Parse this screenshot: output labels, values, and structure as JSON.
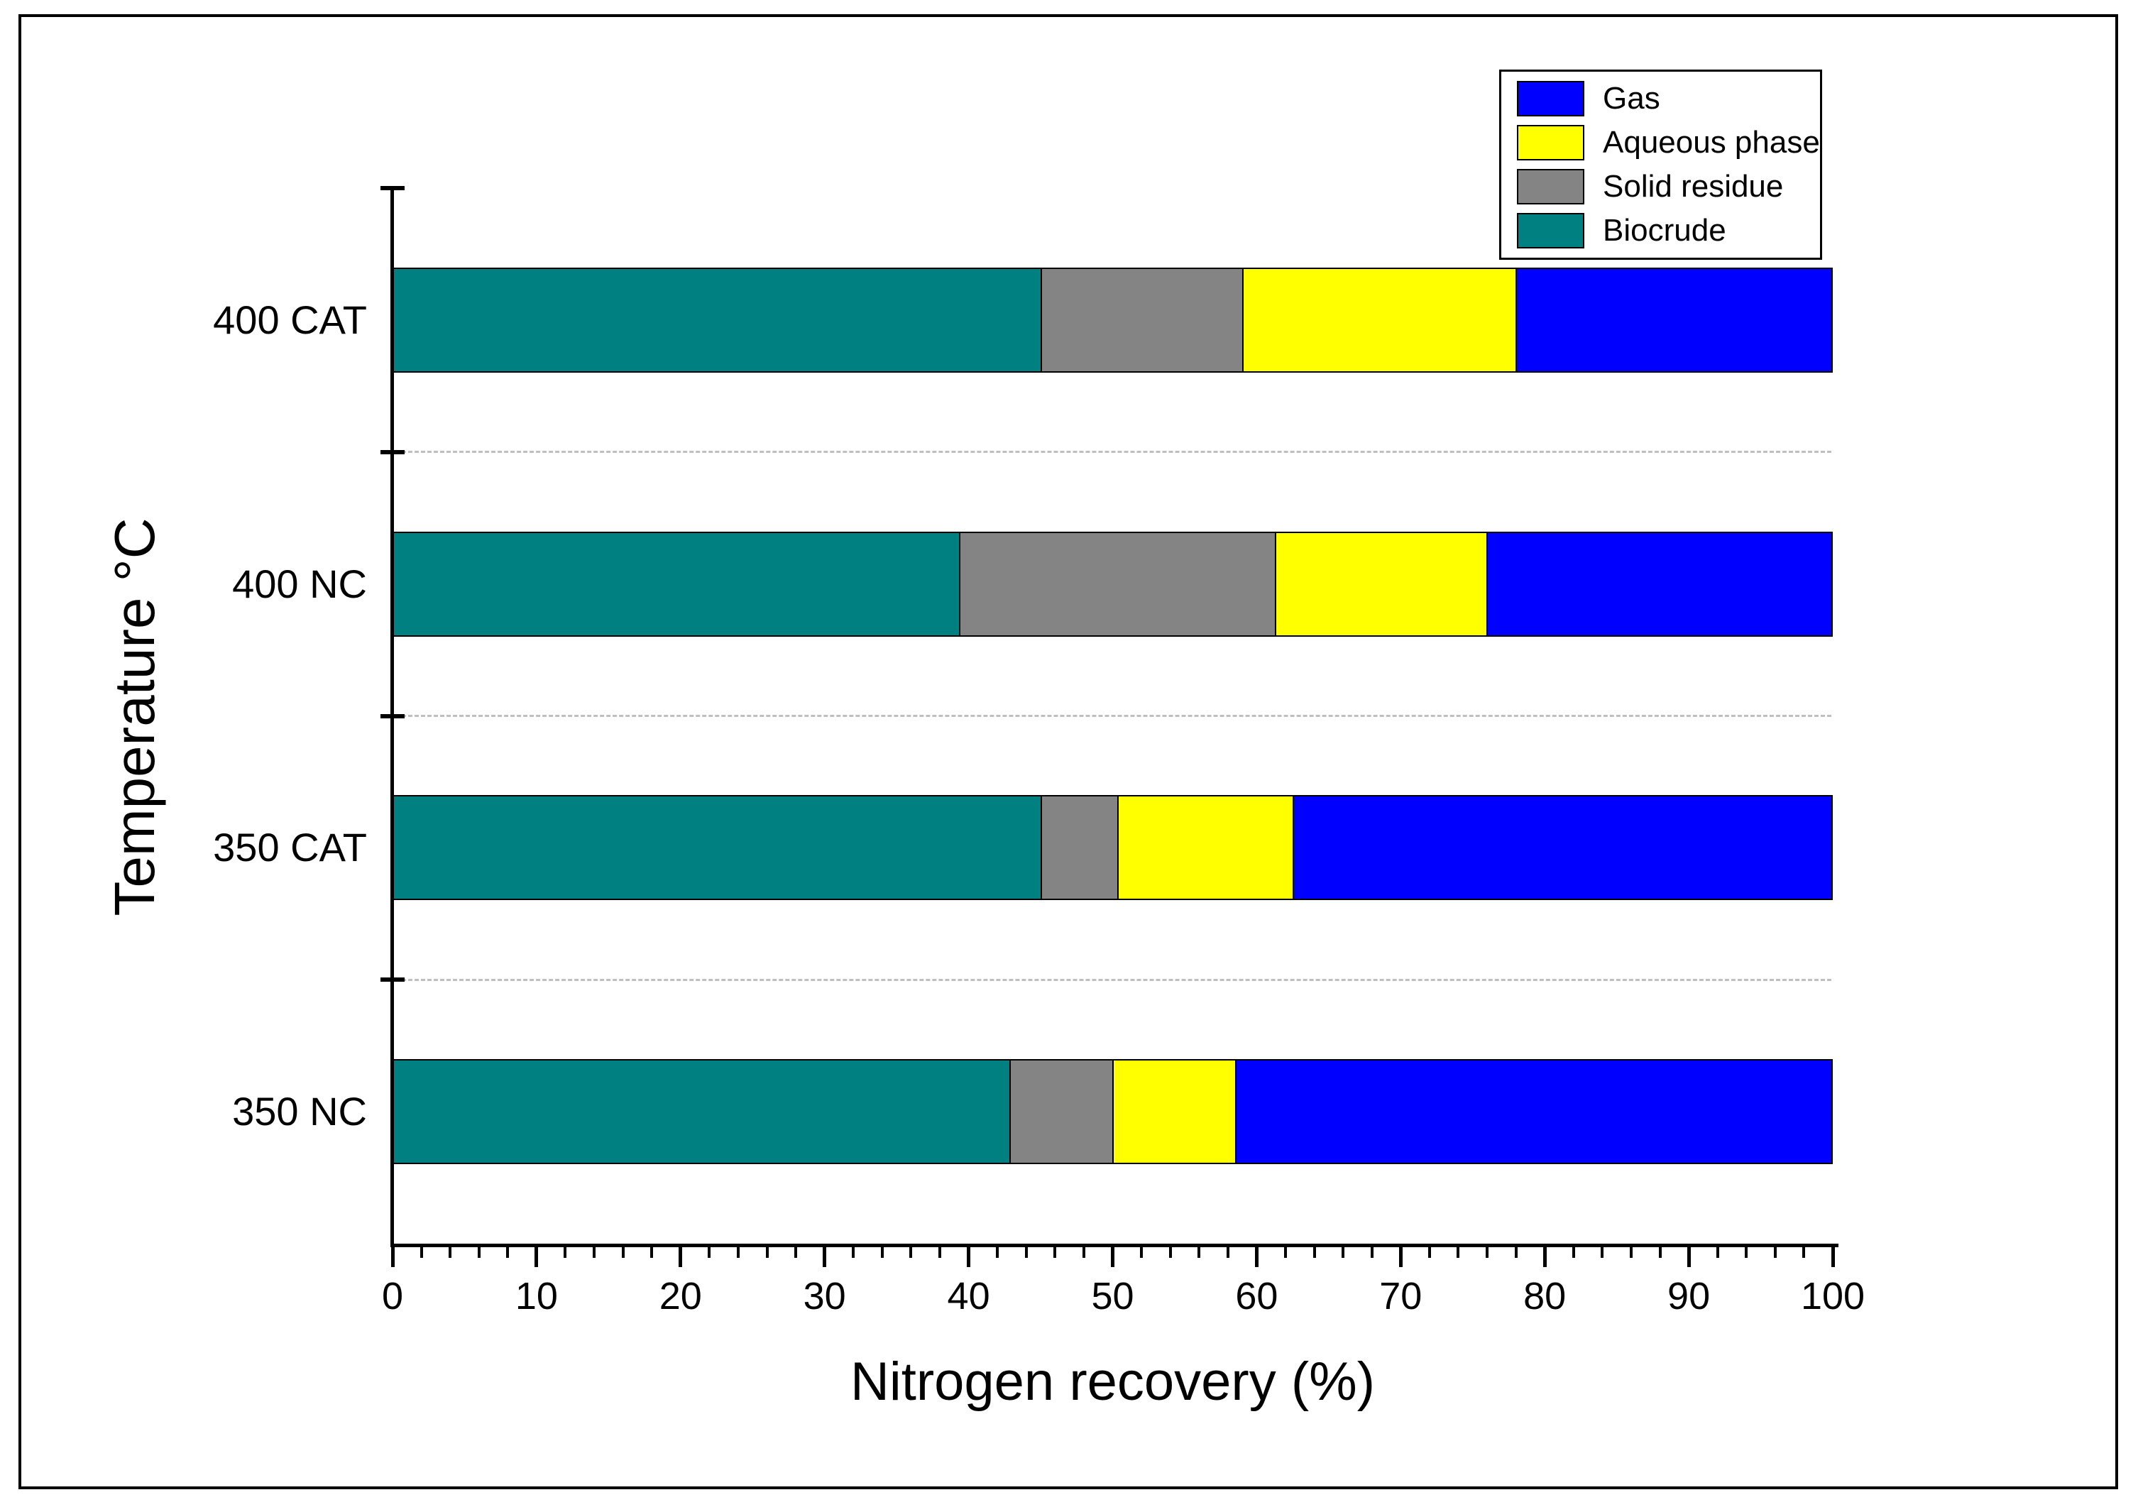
{
  "chart_data": {
    "type": "bar",
    "variant": "horizontal-stacked",
    "title": "",
    "xlabel": "Nitrogen recovery (%)",
    "ylabel": "Temperature °C",
    "categories": [
      "400 CAT",
      "400 NC",
      "350 CAT",
      "350 NC"
    ],
    "series": [
      {
        "name": "Gas",
        "color": "#0000FF",
        "values": [
          22,
          24,
          37.5,
          41.5
        ]
      },
      {
        "name": "Aqueous phase",
        "color": "#FFFF00",
        "values": [
          19,
          14.7,
          12.2,
          8.5
        ]
      },
      {
        "name": "Solid residue",
        "color": "#848484",
        "values": [
          14,
          22,
          5.3,
          7.2
        ]
      },
      {
        "name": "Biocrude",
        "color": "#008080",
        "values": [
          45,
          39.3,
          45,
          42.8
        ]
      }
    ],
    "stack_draw_order": [
      "Biocrude",
      "Solid residue",
      "Aqueous phase",
      "Gas"
    ],
    "xlim": [
      0,
      100
    ],
    "xticks_major": [
      0,
      10,
      20,
      30,
      40,
      50,
      60,
      70,
      80,
      90,
      100
    ],
    "xtick_minor_step": 2,
    "legend_position": "top-right",
    "grid": "dashed gray horizontal separators between category rows",
    "bar_border_color": "#000000",
    "gridline_color": "#BFBFBF"
  }
}
